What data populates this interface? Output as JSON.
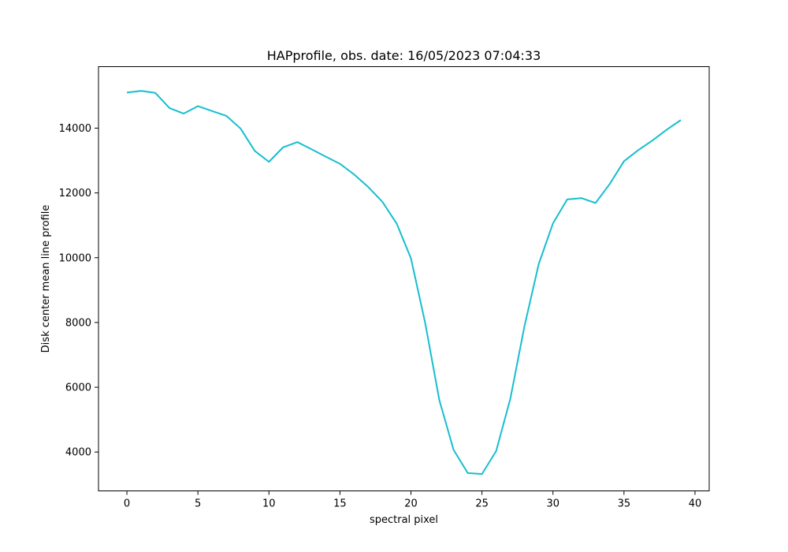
{
  "chart_data": {
    "type": "line",
    "title": "HAPprofile, obs. date: 16/05/2023 07:04:33",
    "xlabel": "spectral pixel",
    "ylabel": "Disk center mean line profile",
    "xlim": [
      -2,
      41
    ],
    "ylim": [
      2800,
      15900
    ],
    "xticks": [
      0,
      5,
      10,
      15,
      20,
      25,
      30,
      35,
      40
    ],
    "yticks": [
      4000,
      6000,
      8000,
      10000,
      12000,
      14000
    ],
    "grid": false,
    "legend": "none",
    "series": [
      {
        "color": "#17becf",
        "x": [
          0,
          1,
          2,
          3,
          4,
          5,
          6,
          7,
          8,
          9,
          10,
          11,
          12,
          13,
          14,
          15,
          16,
          17,
          18,
          19,
          20,
          21,
          22,
          23,
          24,
          25,
          26,
          27,
          28,
          29,
          30,
          31,
          32,
          33,
          34,
          35,
          36,
          37,
          38,
          39
        ],
        "y": [
          15100,
          15150,
          15090,
          14620,
          14450,
          14680,
          14530,
          14380,
          13990,
          13300,
          12960,
          13410,
          13570,
          13350,
          13120,
          12900,
          12570,
          12180,
          11720,
          11050,
          9980,
          7990,
          5600,
          4070,
          3350,
          3320,
          4030,
          5650,
          7900,
          9810,
          11060,
          11800,
          11840,
          11690,
          12280,
          12980,
          13320,
          13620,
          13950,
          14250
        ]
      }
    ]
  }
}
